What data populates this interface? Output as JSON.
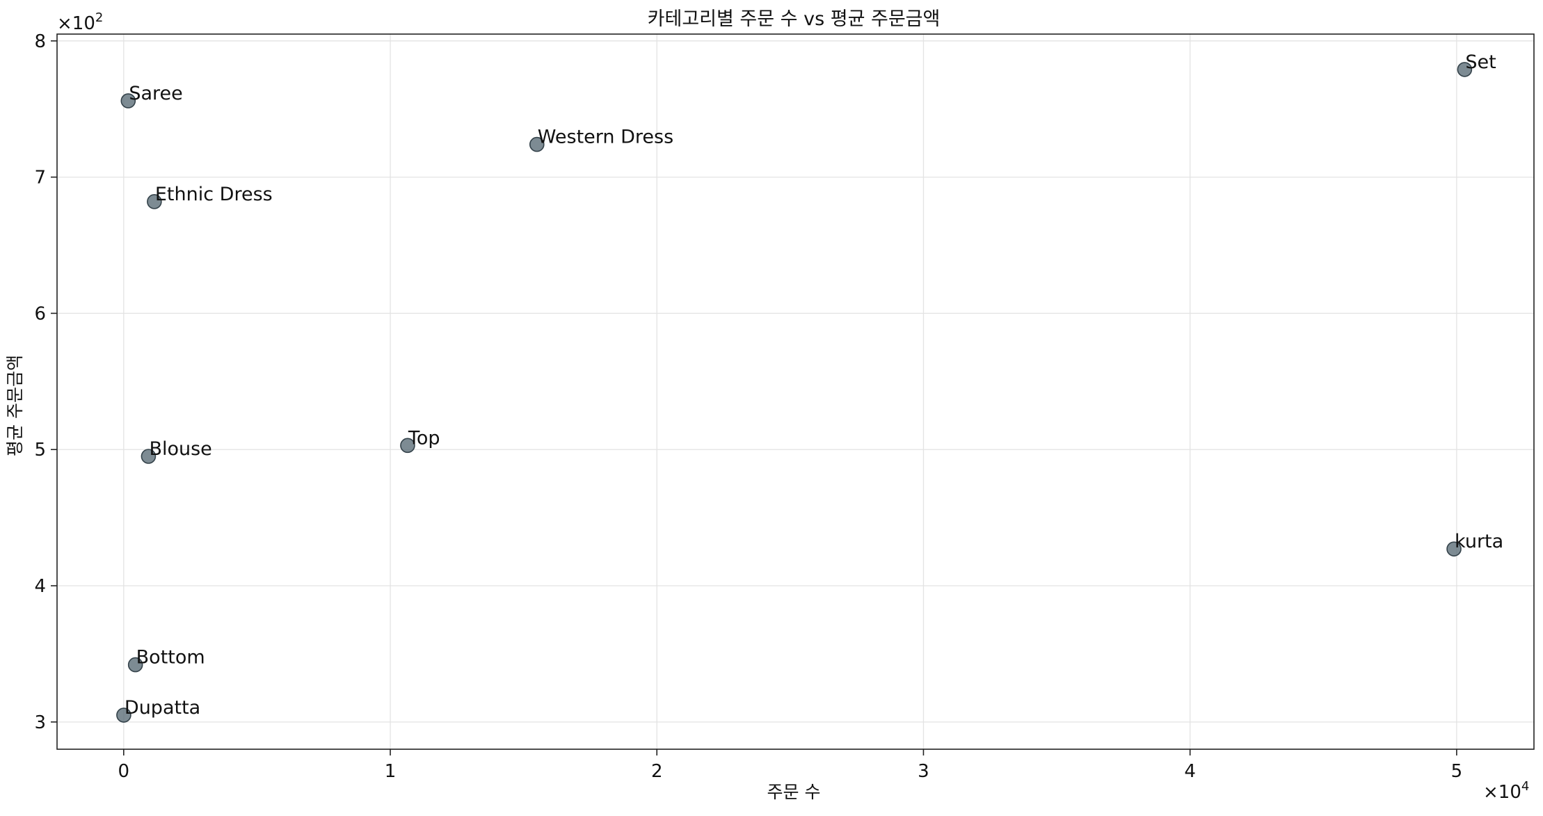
{
  "chart_data": {
    "type": "scatter",
    "title": "카테고리별 주문 수 vs 평균 주문금액",
    "xlabel": "주문 수",
    "ylabel": "평균 주문금액",
    "x_scale_label": "×10",
    "x_scale_exp": "4",
    "y_scale_label": "×10",
    "y_scale_exp": "2",
    "xlim": [
      -2500,
      52900
    ],
    "ylim": [
      280,
      805
    ],
    "x_ticks": [
      0,
      10000,
      20000,
      30000,
      40000,
      50000
    ],
    "x_tick_labels": [
      "0",
      "1",
      "2",
      "3",
      "4",
      "5"
    ],
    "y_ticks": [
      300,
      400,
      500,
      600,
      700,
      800
    ],
    "y_tick_labels": [
      "3",
      "4",
      "5",
      "6",
      "7",
      "8"
    ],
    "grid": true,
    "marker_color": "#5c6e78",
    "points": [
      {
        "label": "Set",
        "x": 50300,
        "y": 779
      },
      {
        "label": "Saree",
        "x": 170,
        "y": 756
      },
      {
        "label": "Western Dress",
        "x": 15500,
        "y": 724
      },
      {
        "label": "Ethnic Dress",
        "x": 1150,
        "y": 682
      },
      {
        "label": "Top",
        "x": 10650,
        "y": 503
      },
      {
        "label": "Blouse",
        "x": 930,
        "y": 495
      },
      {
        "label": "kurta",
        "x": 49900,
        "y": 427
      },
      {
        "label": "Bottom",
        "x": 440,
        "y": 342
      },
      {
        "label": "Dupatta",
        "x": 3,
        "y": 305
      }
    ]
  }
}
